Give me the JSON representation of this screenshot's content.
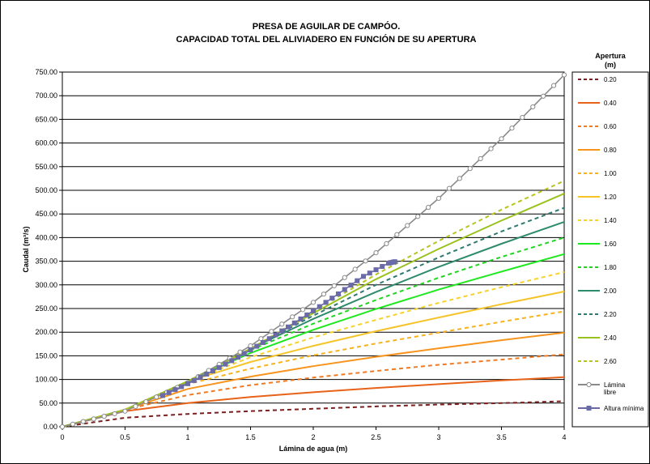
{
  "chart_data": {
    "type": "line",
    "title_lines": [
      "PRESA DE AGUILAR DE CAMPÓO.",
      "CAPACIDAD TOTAL DEL ALIVIADERO EN FUNCIÓN DE SU APERTURA"
    ],
    "xlabel": "Lámina de agua (m)",
    "ylabel": "Caudal (m³/s)",
    "xlim": [
      0,
      4
    ],
    "ylim": [
      0,
      750
    ],
    "x_ticks": [
      "0",
      "0.5",
      "1",
      "1.5",
      "2",
      "2.5",
      "3",
      "3.5",
      "4"
    ],
    "y_ticks": [
      "0.00",
      "50.00",
      "100.00",
      "150.00",
      "200.00",
      "250.00",
      "300.00",
      "350.00",
      "400.00",
      "450.00",
      "500.00",
      "550.00",
      "600.00",
      "650.00",
      "700.00",
      "750.00"
    ],
    "grid": "horizontal",
    "legend_position": "right",
    "legend_title_lines": [
      "Apertura",
      "(m)"
    ],
    "series": [
      {
        "name": "0.20",
        "color": "#7b1f1f",
        "dash": true,
        "x": [
          0,
          0.5,
          1,
          1.5,
          2,
          2.5,
          3,
          3.5,
          4
        ],
        "y": [
          0,
          19,
          27,
          33,
          38,
          43,
          47,
          50,
          54
        ]
      },
      {
        "name": "0.40",
        "color": "#e8621a",
        "dash": false,
        "x": [
          0,
          0.5,
          1,
          1.5,
          2,
          2.5,
          3,
          3.5,
          4
        ],
        "y": [
          0,
          33,
          50,
          63,
          73,
          82,
          90,
          98,
          105
        ]
      },
      {
        "name": "0.60",
        "color": "#f07a22",
        "dash": true,
        "x": [
          0,
          0.5,
          1,
          1.5,
          2,
          2.5,
          3,
          3.5,
          4
        ],
        "y": [
          0,
          36,
          67,
          88,
          104,
          118,
          131,
          142,
          153
        ]
      },
      {
        "name": "0.80",
        "color": "#f7941d",
        "dash": false,
        "x": [
          0,
          0.5,
          1,
          1.5,
          2,
          2.5,
          3,
          3.5,
          4
        ],
        "y": [
          0,
          36,
          80,
          106,
          128,
          148,
          166,
          183,
          199
        ]
      },
      {
        "name": "1.00",
        "color": "#f7b21d",
        "dash": true,
        "x": [
          0,
          0.5,
          1,
          1.5,
          2,
          2.5,
          3,
          3.5,
          4
        ],
        "y": [
          0,
          36,
          90,
          123,
          151,
          176,
          199,
          222,
          244
        ]
      },
      {
        "name": "1.20",
        "color": "#f5c42a",
        "dash": false,
        "x": [
          0,
          0.5,
          1,
          1.5,
          2,
          2.5,
          3,
          3.5,
          4
        ],
        "y": [
          0,
          36,
          96,
          137,
          171,
          202,
          231,
          259,
          286
        ]
      },
      {
        "name": "1.40",
        "color": "#f6d22c",
        "dash": true,
        "x": [
          0,
          0.5,
          1,
          1.5,
          2,
          2.5,
          3,
          3.5,
          4
        ],
        "y": [
          0,
          36,
          96,
          147,
          189,
          226,
          262,
          295,
          327
        ]
      },
      {
        "name": "1.60",
        "color": "#1ee81e",
        "dash": false,
        "x": [
          0,
          0.5,
          1,
          1.5,
          2,
          2.5,
          3,
          3.5,
          4
        ],
        "y": [
          0,
          36,
          96,
          156,
          205,
          249,
          290,
          328,
          365
        ]
      },
      {
        "name": "1.80",
        "color": "#22d422",
        "dash": true,
        "x": [
          0,
          0.5,
          1,
          1.5,
          2,
          2.5,
          3,
          3.5,
          4
        ],
        "y": [
          0,
          36,
          96,
          162,
          218,
          268,
          315,
          359,
          400
        ]
      },
      {
        "name": "2.00",
        "color": "#2e8b6b",
        "dash": false,
        "x": [
          0,
          0.5,
          1,
          1.5,
          2,
          2.5,
          3,
          3.5,
          4
        ],
        "y": [
          0,
          36,
          96,
          165,
          228,
          285,
          338,
          387,
          433
        ]
      },
      {
        "name": "2.20",
        "color": "#2e7a70",
        "dash": true,
        "x": [
          0,
          0.5,
          1,
          1.5,
          2,
          2.5,
          3,
          3.5,
          4
        ],
        "y": [
          0,
          36,
          96,
          165,
          235,
          300,
          358,
          413,
          463
        ]
      },
      {
        "name": "2.40",
        "color": "#9ac21e",
        "dash": false,
        "x": [
          0,
          0.5,
          1,
          1.5,
          2,
          2.5,
          3,
          3.5,
          4
        ],
        "y": [
          0,
          36,
          96,
          165,
          240,
          312,
          376,
          436,
          493
        ]
      },
      {
        "name": "2.60",
        "color": "#b8c41e",
        "dash": true,
        "x": [
          0,
          0.5,
          1,
          1.5,
          2,
          2.5,
          3,
          3.5,
          4
        ],
        "y": [
          0,
          36,
          96,
          165,
          244,
          322,
          393,
          459,
          520
        ]
      },
      {
        "name": "Lámina libre",
        "color": "#8a8a8a",
        "dash": false,
        "marker": "circle",
        "legend_lines": [
          "Lámina",
          "libre"
        ],
        "x": [
          0,
          0.5,
          1,
          1.5,
          2,
          2.5,
          3,
          3.5,
          4
        ],
        "y": [
          0,
          33,
          93,
          171,
          263,
          368,
          483,
          609,
          744
        ]
      },
      {
        "name": "Altura mínima",
        "color": "#6a6aa8",
        "dash": false,
        "marker": "square",
        "legend_lines": [
          "Altura mínima"
        ],
        "x": [
          0.8,
          1,
          1.2,
          1.4,
          1.6,
          1.8,
          2,
          2.2,
          2.4,
          2.6,
          2.65
        ],
        "y": [
          66,
          91,
          118,
          147,
          178,
          211,
          245,
          281,
          318,
          346,
          349
        ]
      }
    ]
  }
}
